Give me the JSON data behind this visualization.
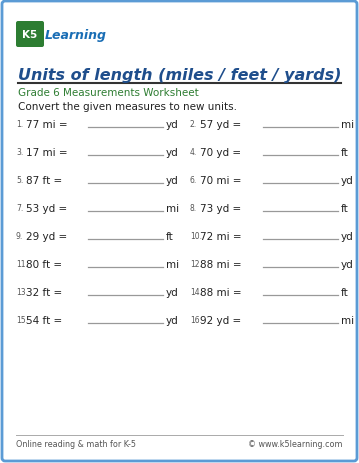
{
  "title": "Units of length (miles / feet / yards)",
  "subtitle": "Grade 6 Measurements Worksheet",
  "instruction": "Convert the given measures to new units.",
  "problems": [
    {
      "num": "1.",
      "left": "77 mi =",
      "right_unit": "yd"
    },
    {
      "num": "2.",
      "left": "57 yd =",
      "right_unit": "mi"
    },
    {
      "num": "3.",
      "left": "17 mi =",
      "right_unit": "yd"
    },
    {
      "num": "4.",
      "left": "70 yd =",
      "right_unit": "ft"
    },
    {
      "num": "5.",
      "left": "87 ft =",
      "right_unit": "yd"
    },
    {
      "num": "6.",
      "left": "70 mi =",
      "right_unit": "yd"
    },
    {
      "num": "7.",
      "left": "53 yd =",
      "right_unit": "mi"
    },
    {
      "num": "8.",
      "left": "73 yd =",
      "right_unit": "ft"
    },
    {
      "num": "9.",
      "left": "29 yd =",
      "right_unit": "ft"
    },
    {
      "num": "10.",
      "left": "72 mi =",
      "right_unit": "yd"
    },
    {
      "num": "11.",
      "left": "80 ft =",
      "right_unit": "mi"
    },
    {
      "num": "12.",
      "left": "88 mi =",
      "right_unit": "yd"
    },
    {
      "num": "13.",
      "left": "32 ft =",
      "right_unit": "yd"
    },
    {
      "num": "14.",
      "left": "88 mi =",
      "right_unit": "ft"
    },
    {
      "num": "15.",
      "left": "54 ft =",
      "right_unit": "yd"
    },
    {
      "num": "16.",
      "left": "92 yd =",
      "right_unit": "mi"
    }
  ],
  "footer_left": "Online reading & math for K-5",
  "footer_right": "© www.k5learning.com",
  "bg_color": "#ffffff",
  "border_color": "#5b9bd5",
  "title_color": "#1f4e8c",
  "subtitle_color": "#2e7d32",
  "text_color": "#222222",
  "num_color": "#555555",
  "line_color": "#999999",
  "footer_color": "#555555"
}
